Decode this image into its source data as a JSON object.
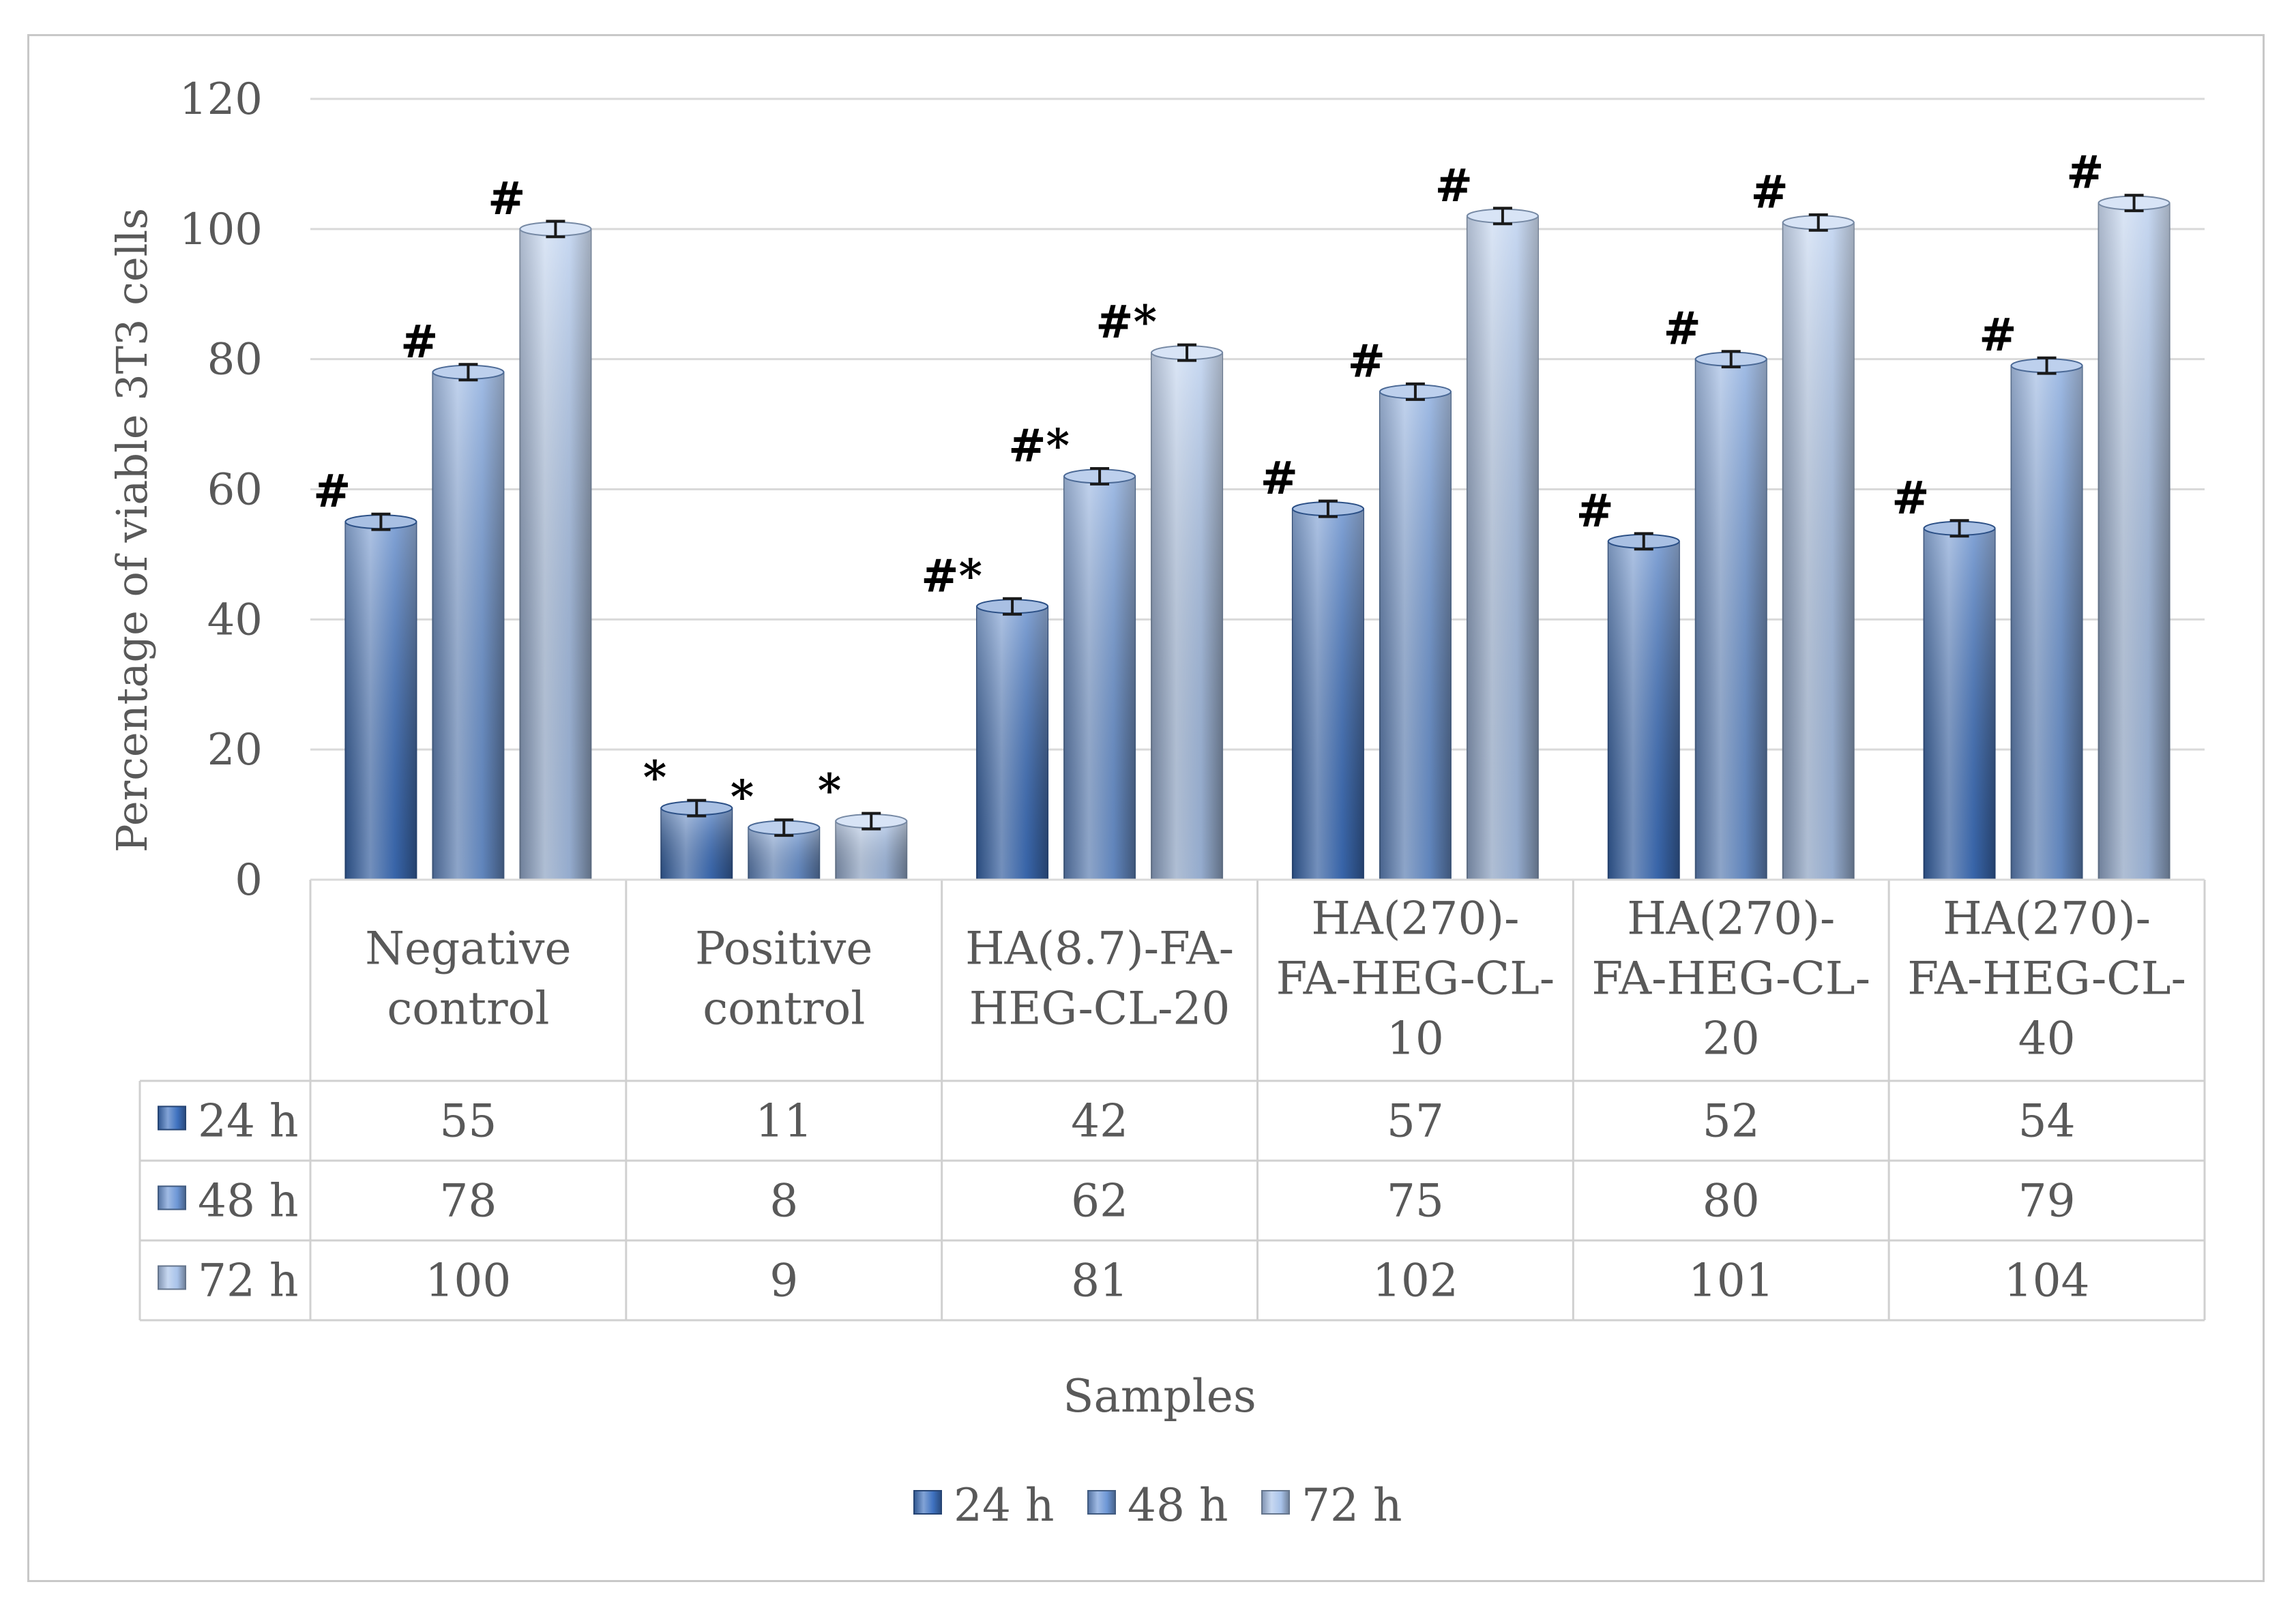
{
  "chart_data": {
    "type": "bar",
    "title": "",
    "xlabel": "Samples",
    "ylabel": "Percentage of viable 3T3 cells",
    "ylim": [
      0,
      120
    ],
    "yticks": [
      0,
      20,
      40,
      60,
      80,
      100,
      120
    ],
    "grid": true,
    "legend_position": "bottom",
    "categories": [
      [
        "Negative",
        "control"
      ],
      [
        "Positive",
        "control"
      ],
      [
        "HA(8.7)-FA-",
        "HEG-CL-20"
      ],
      [
        "HA(270)-",
        "FA-HEG-CL-",
        "10"
      ],
      [
        "HA(270)-",
        "FA-HEG-CL-",
        "20"
      ],
      [
        "HA(270)-",
        "FA-HEG-CL-",
        "40"
      ]
    ],
    "series": [
      {
        "name": "24 h",
        "values": [
          55,
          11,
          42,
          57,
          52,
          54
        ],
        "error": [
          1.2,
          1.2,
          1.2,
          1.2,
          1.2,
          1.2
        ],
        "markers": [
          "#",
          "*",
          "#*",
          "#",
          "#",
          "#"
        ],
        "color": "#3f72c0"
      },
      {
        "name": "48 h",
        "values": [
          78,
          8,
          62,
          75,
          80,
          79
        ],
        "error": [
          1.2,
          1.2,
          1.2,
          1.2,
          1.2,
          1.2
        ],
        "markers": [
          "#",
          "*",
          "#*",
          "#",
          "#",
          "#"
        ],
        "color": "#6d97d6"
      },
      {
        "name": "72 h",
        "values": [
          100,
          9,
          81,
          102,
          101,
          104
        ],
        "error": [
          1.2,
          1.2,
          1.2,
          1.2,
          1.2,
          1.2
        ],
        "markers": [
          "#",
          "*",
          "#*",
          "#",
          "#",
          "#"
        ],
        "color": "#a9c3ea"
      }
    ]
  }
}
